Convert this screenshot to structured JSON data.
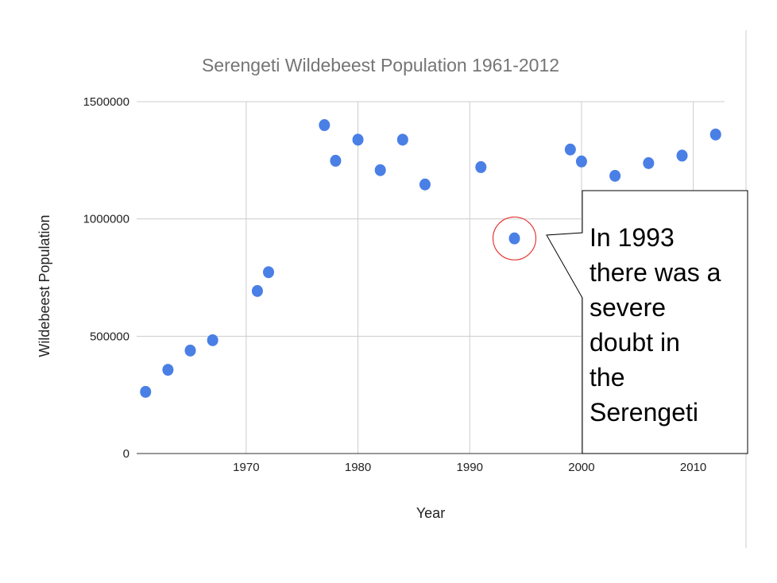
{
  "chart_data": {
    "type": "scatter",
    "title": "Serengeti Wildebeest Population 1961-2012",
    "xlabel": "Year",
    "ylabel": "Wildebeest Population",
    "xlim": [
      1960.2,
      2012.8
    ],
    "ylim": [
      0,
      1500000
    ],
    "x_ticks": [
      1970,
      1980,
      1990,
      2000,
      2010
    ],
    "y_ticks": [
      0,
      500000,
      1000000,
      1500000
    ],
    "y_tick_labels": [
      "0",
      "500000",
      "1000000",
      "1500000"
    ],
    "grid": true,
    "legend": "none",
    "series": [
      {
        "name": "Wildebeest Population",
        "color": "#4a7fe6",
        "points": [
          {
            "x": 1961,
            "y": 263000
          },
          {
            "x": 1963,
            "y": 357000
          },
          {
            "x": 1965,
            "y": 439000
          },
          {
            "x": 1967,
            "y": 483000
          },
          {
            "x": 1971,
            "y": 693000
          },
          {
            "x": 1972,
            "y": 773000
          },
          {
            "x": 1977,
            "y": 1400000
          },
          {
            "x": 1978,
            "y": 1248000
          },
          {
            "x": 1980,
            "y": 1338000
          },
          {
            "x": 1982,
            "y": 1208000
          },
          {
            "x": 1984,
            "y": 1338000
          },
          {
            "x": 1986,
            "y": 1147000
          },
          {
            "x": 1991,
            "y": 1221000
          },
          {
            "x": 1994,
            "y": 917000
          },
          {
            "x": 1999,
            "y": 1296000
          },
          {
            "x": 2000,
            "y": 1245000
          },
          {
            "x": 2003,
            "y": 1184000
          },
          {
            "x": 2006,
            "y": 1238000
          },
          {
            "x": 2009,
            "y": 1270000
          },
          {
            "x": 2012,
            "y": 1360000
          }
        ]
      }
    ],
    "annotations": [
      {
        "target": {
          "x": 1994,
          "y": 917000
        },
        "marker": "circle",
        "marker_color": "#e53935",
        "lines": [
          "In 1993",
          "there was a",
          "severe",
          "doubt in",
          "the",
          "Serengeti"
        ]
      }
    ]
  }
}
